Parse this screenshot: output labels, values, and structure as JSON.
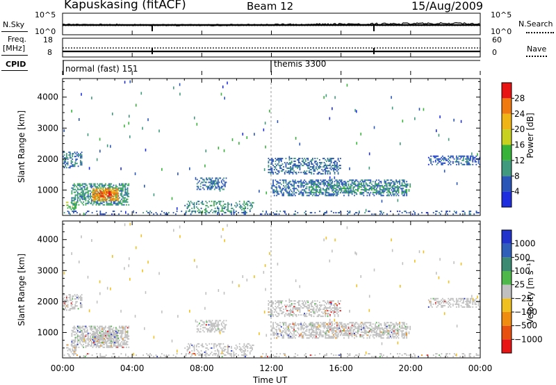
{
  "header": {
    "station": "Kapuskasing (fitACF)",
    "beam": "Beam 12",
    "date": "15/Aug/2009"
  },
  "nsky_panel": {
    "left_label": "N.Sky",
    "left_ticks": [
      "10^5",
      "10^0"
    ],
    "right_label": "N.Search",
    "right_ticks": [
      "10^5",
      "10^0"
    ]
  },
  "freq_panel": {
    "left_label_line1": "Freq.",
    "left_label_line2": "[MHz]",
    "left_ticks": [
      "18",
      "8"
    ],
    "right_label": "Nave",
    "right_ticks": [
      "60",
      "0"
    ]
  },
  "cpid_panel": {
    "label": "CPID",
    "modes": [
      {
        "name": "normal (fast) 151",
        "start_hour": 0.0
      },
      {
        "name": "themis 3300",
        "start_hour": 12.0
      }
    ]
  },
  "x_axis": {
    "label": "Time UT",
    "ticks": [
      "00:00",
      "04:00",
      "08:00",
      "12:00",
      "16:00",
      "20:00",
      "00:00"
    ],
    "range_hours": [
      0,
      24
    ]
  },
  "power_panel": {
    "ylabel": "Slant Range [km]",
    "yticks": [
      "1000",
      "2000",
      "3000",
      "4000"
    ],
    "colorbar_label": "Power [dB]",
    "colorbar_ticks": [
      "4",
      "8",
      "12",
      "16",
      "20",
      "24",
      "28"
    ],
    "colors": [
      "#1f2fe0",
      "#2a56b8",
      "#3f9a7e",
      "#38b33a",
      "#c8d020",
      "#f0b416",
      "#f07a10",
      "#e81414"
    ]
  },
  "velocity_panel": {
    "ylabel": "Slant Range [km]",
    "yticks": [
      "1000",
      "2000",
      "3000",
      "4000"
    ],
    "colorbar_label": "Velocity [m s⁻¹]",
    "colorbar_ticks": [
      "1000",
      "500",
      "100",
      "25",
      "−25",
      "−100",
      "−500",
      "−1000"
    ],
    "colors": [
      "#2233cc",
      "#2f5fb8",
      "#3d8a72",
      "#4fb84a",
      "#c0c0c0",
      "#f0c020",
      "#f08c10",
      "#e85010",
      "#e81414"
    ]
  },
  "chart_data": {
    "type": "heatmap",
    "x_label": "Time UT",
    "y_label": "Slant Range [km]",
    "x_range_hours": [
      0,
      24
    ],
    "y_range_km": [
      180,
      4600
    ],
    "scatter_regions": [
      {
        "t0": 0.0,
        "t1": 1.1,
        "r0": 1700,
        "r1": 2200,
        "power_db": 8,
        "density": 0.45
      },
      {
        "t0": 0.5,
        "t1": 3.8,
        "r0": 500,
        "r1": 1200,
        "power_db": 10,
        "density": 0.55
      },
      {
        "t0": 1.7,
        "t1": 3.2,
        "r0": 650,
        "r1": 1050,
        "power_db": 24,
        "density": 0.75
      },
      {
        "t0": 2.1,
        "t1": 2.8,
        "r0": 780,
        "r1": 950,
        "power_db": 28,
        "density": 0.85
      },
      {
        "t0": 0.2,
        "t1": 0.8,
        "r0": 350,
        "r1": 600,
        "power_db": 14,
        "density": 0.5
      },
      {
        "t0": 7.7,
        "t1": 9.4,
        "r0": 1000,
        "r1": 1400,
        "power_db": 7,
        "density": 0.4
      },
      {
        "t0": 7.0,
        "t1": 11.0,
        "r0": 250,
        "r1": 650,
        "power_db": 10,
        "density": 0.3
      },
      {
        "t0": 11.8,
        "t1": 16.0,
        "r0": 1500,
        "r1": 2000,
        "power_db": 7,
        "density": 0.4
      },
      {
        "t0": 12.0,
        "t1": 19.8,
        "r0": 800,
        "r1": 1300,
        "power_db": 7,
        "density": 0.45
      },
      {
        "t0": 14.0,
        "t1": 20.0,
        "r0": 900,
        "r1": 1200,
        "power_db": 11,
        "density": 0.3
      },
      {
        "t0": 21.0,
        "t1": 24.0,
        "r0": 1800,
        "r1": 2100,
        "power_db": 6,
        "density": 0.45
      },
      {
        "t0": 0.0,
        "t1": 24.0,
        "r0": 200,
        "r1": 320,
        "power_db": 6,
        "density": 0.18
      }
    ]
  }
}
